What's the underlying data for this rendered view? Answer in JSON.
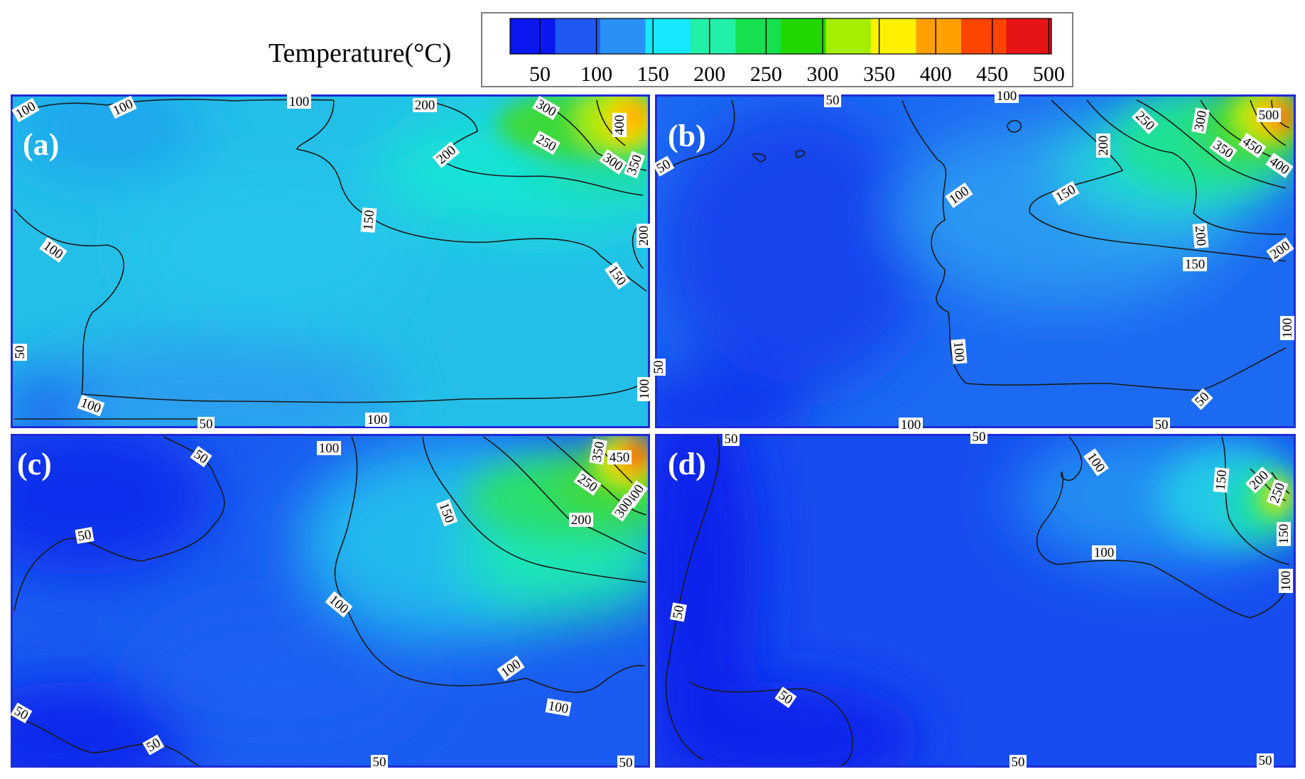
{
  "chart_data": {
    "type": "heatmap",
    "legend": {
      "title": "Temperature(°C)",
      "colors": [
        "#0a17ee",
        "#1f58f2",
        "#2a90f5",
        "#15e8ff",
        "#22f0a8",
        "#16e04d",
        "#20d800",
        "#a6ee00",
        "#fff000",
        "#ffa000",
        "#ff4500",
        "#e61414"
      ],
      "ticks": [
        "50",
        "100",
        "150",
        "200",
        "250",
        "300",
        "350",
        "400",
        "450",
        "500"
      ]
    },
    "panels": [
      {
        "label": "(a)",
        "background": "#24bfe8",
        "hot_corner": "top-right",
        "max_label": "400",
        "contour_labels": [
          "100",
          "100",
          "100",
          "200",
          "300",
          "400",
          "200",
          "250",
          "350",
          "300",
          "150",
          "100",
          "200",
          "150",
          "50",
          "100",
          "50",
          "100",
          "100"
        ]
      },
      {
        "label": "(b)",
        "background": "#1c6af2",
        "hot_corner": "top-right",
        "max_label": "500",
        "contour_labels": [
          "50",
          "50",
          "100",
          "200",
          "250",
          "300",
          "500",
          "450",
          "350",
          "400",
          "100",
          "150",
          "200",
          "200",
          "150",
          "100",
          "100",
          "50",
          "100",
          "50",
          "50"
        ]
      },
      {
        "label": "(c)",
        "background": "#1a5cf1",
        "hot_corner": "top-right",
        "max_label": "450",
        "contour_labels": [
          "50",
          "100",
          "350",
          "450",
          "250",
          "400",
          "300",
          "150",
          "200",
          "50",
          "100",
          "100",
          "100",
          "50",
          "50",
          "50",
          "50"
        ]
      },
      {
        "label": "(d)",
        "background": "#174df0",
        "hot_corner": "top-right",
        "max_label": "250",
        "contour_labels": [
          "50",
          "50",
          "100",
          "150",
          "200",
          "250",
          "150",
          "100",
          "100",
          "50",
          "50",
          "50",
          "50"
        ]
      }
    ]
  }
}
